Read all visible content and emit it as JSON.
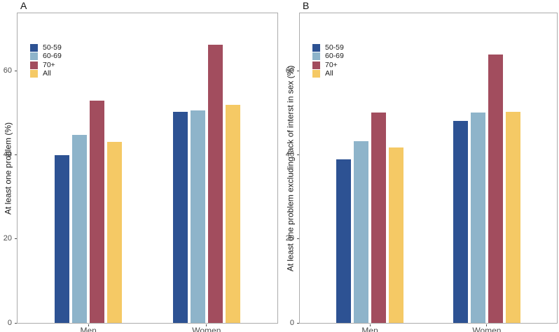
{
  "figure": {
    "background": "#ffffff",
    "panel_border_color": "#ababab",
    "axis_text_color": "#4d4d4d",
    "title_color": "#111111"
  },
  "chart_data": [
    {
      "type": "bar",
      "panel_label": "A",
      "title": "",
      "xlabel": "",
      "ylabel": "At least one problem (%)",
      "categories": [
        "Men",
        "Women"
      ],
      "yticks": [
        0,
        20,
        40,
        60
      ],
      "ylim": [
        0,
        73.8
      ],
      "grid": false,
      "legend_position": "inside top-left",
      "series": [
        {
          "name": "50-59",
          "color": "#2d5293",
          "values": [
            39.9,
            50.3
          ]
        },
        {
          "name": "60-69",
          "color": "#8eb4ca",
          "values": [
            44.8,
            50.7
          ]
        },
        {
          "name": "70+",
          "color": "#a24d5e",
          "values": [
            53.0,
            66.3
          ]
        },
        {
          "name": "All",
          "color": "#f5c965",
          "values": [
            43.2,
            52.0
          ]
        }
      ]
    },
    {
      "type": "bar",
      "panel_label": "B",
      "title": "",
      "xlabel": "",
      "ylabel": "At least one problem excluding lack of interst in sex (%)",
      "categories": [
        "Men",
        "Women"
      ],
      "yticks": [
        0,
        20,
        40,
        60
      ],
      "ylim": [
        0,
        73.8
      ],
      "grid": false,
      "legend_position": "inside top-left",
      "series": [
        {
          "name": "50-59",
          "color": "#2d5293",
          "values": [
            39.0,
            48.2
          ]
        },
        {
          "name": "60-69",
          "color": "#8eb4ca",
          "values": [
            43.3,
            50.2
          ]
        },
        {
          "name": "70+",
          "color": "#a24d5e",
          "values": [
            50.2,
            64.0
          ]
        },
        {
          "name": "All",
          "color": "#f5c965",
          "values": [
            41.8,
            50.3
          ]
        }
      ]
    }
  ]
}
